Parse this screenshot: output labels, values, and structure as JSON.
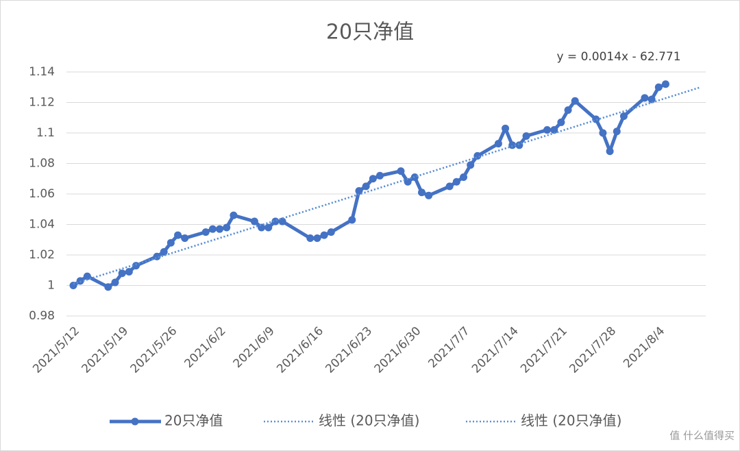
{
  "chart_data": {
    "type": "line",
    "title": "20只净值",
    "annotation": "y = 0.0014x - 62.771",
    "watermark": "值 什么值得买",
    "grid": true,
    "ylim": [
      0.98,
      1.14
    ],
    "yticks": [
      0.98,
      {
        "value": 1.0,
        "label": "1"
      },
      1.02,
      1.04,
      1.06,
      1.08,
      {
        "value": 1.1,
        "label": "1.1"
      },
      1.12,
      1.14
    ],
    "xlim": [
      "2021/5/12",
      "2021/8/11"
    ],
    "xticks": [
      "2021/5/12",
      "2021/5/19",
      "2021/5/26",
      "2021/6/2",
      "2021/6/9",
      "2021/6/16",
      "2021/6/23",
      "2021/6/30",
      "2021/7/7",
      "2021/7/14",
      "2021/7/21",
      "2021/7/28",
      "2021/8/4"
    ],
    "series": [
      {
        "name": "20只净值",
        "color": "#4472c4",
        "style": "solid",
        "x": [
          "2021/5/12",
          "2021/5/13",
          "2021/5/14",
          "2021/5/17",
          "2021/5/18",
          "2021/5/19",
          "2021/5/20",
          "2021/5/21",
          "2021/5/24",
          "2021/5/25",
          "2021/5/26",
          "2021/5/27",
          "2021/5/28",
          "2021/5/31",
          "2021/6/1",
          "2021/6/2",
          "2021/6/3",
          "2021/6/4",
          "2021/6/7",
          "2021/6/8",
          "2021/6/9",
          "2021/6/10",
          "2021/6/11",
          "2021/6/15",
          "2021/6/16",
          "2021/6/17",
          "2021/6/18",
          "2021/6/21",
          "2021/6/22",
          "2021/6/23",
          "2021/6/24",
          "2021/6/25",
          "2021/6/28",
          "2021/6/29",
          "2021/6/30",
          "2021/7/1",
          "2021/7/2",
          "2021/7/5",
          "2021/7/6",
          "2021/7/7",
          "2021/7/8",
          "2021/7/9",
          "2021/7/12",
          "2021/7/13",
          "2021/7/14",
          "2021/7/15",
          "2021/7/16",
          "2021/7/19",
          "2021/7/20",
          "2021/7/21",
          "2021/7/22",
          "2021/7/23",
          "2021/7/26",
          "2021/7/27",
          "2021/7/28",
          "2021/7/29",
          "2021/7/30",
          "2021/8/2",
          "2021/8/3",
          "2021/8/4",
          "2021/8/5"
        ],
        "values": [
          1.0,
          1.003,
          1.006,
          0.999,
          1.002,
          1.008,
          1.009,
          1.013,
          1.019,
          1.022,
          1.028,
          1.033,
          1.031,
          1.035,
          1.037,
          1.037,
          1.038,
          1.046,
          1.042,
          1.038,
          1.038,
          1.042,
          1.042,
          1.031,
          1.031,
          1.033,
          1.035,
          1.043,
          1.062,
          1.065,
          1.07,
          1.072,
          1.075,
          1.068,
          1.071,
          1.061,
          1.059,
          1.065,
          1.068,
          1.071,
          1.079,
          1.085,
          1.093,
          1.103,
          1.092,
          1.092,
          1.098,
          1.102,
          1.102,
          1.107,
          1.115,
          1.121,
          1.109,
          1.1,
          1.088,
          1.101,
          1.111,
          1.123,
          1.122,
          1.13,
          1.132
        ]
      },
      {
        "name": "线性 (20只净值)",
        "color": "#5b8fd6",
        "style": "dotted",
        "x": [
          "2021/5/12",
          "2021/8/10"
        ],
        "values": [
          1.001,
          1.13
        ]
      },
      {
        "name": "线性 (20只净值)",
        "color": "#5b8fd6",
        "style": "dotted",
        "x": [
          "2021/5/12",
          "2021/8/10"
        ],
        "values": [
          1.001,
          1.13
        ]
      }
    ]
  }
}
